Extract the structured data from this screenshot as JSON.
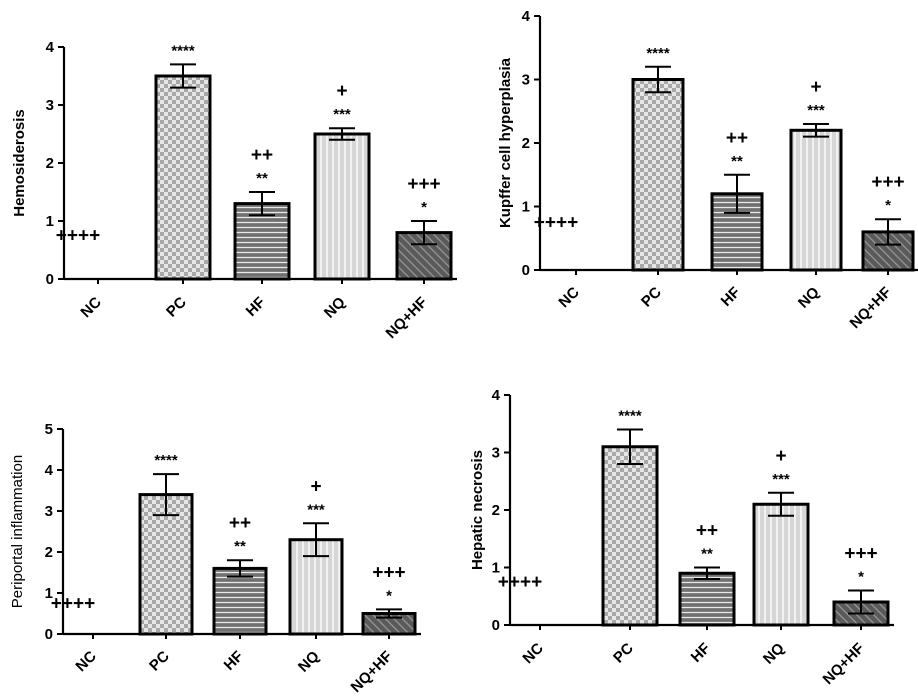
{
  "colors": {
    "axis": "#000000",
    "pc_fill": "checker-gray",
    "hf_fill": "#6e6e6e",
    "nq_fill": "#d9d9d9",
    "nqhf_fill": "#5f5f5f"
  },
  "chart_data": [
    {
      "type": "bar",
      "ylabel": "Hemosiderosis",
      "ylim": [
        0,
        4
      ],
      "yticks": [
        "0",
        "1",
        "2",
        "3",
        "4"
      ],
      "categories": [
        "NC",
        "PC",
        "HF",
        "NQ",
        "NQ+HF"
      ],
      "values": [
        0,
        3.5,
        1.3,
        2.5,
        0.8
      ],
      "errors": [
        0,
        0.2,
        0.2,
        0.1,
        0.2
      ],
      "star_labels": [
        "",
        "****",
        "**",
        "***",
        "*"
      ],
      "plus_labels": [
        "++++",
        "",
        "++",
        "+",
        "+++"
      ]
    },
    {
      "type": "bar",
      "ylabel": "Kupffer cell hyperplasia",
      "ylim": [
        0,
        4
      ],
      "yticks": [
        "0",
        "1",
        "2",
        "3",
        "4"
      ],
      "categories": [
        "NC",
        "PC",
        "HF",
        "NQ",
        "NQ+HF"
      ],
      "values": [
        0,
        3.0,
        1.2,
        2.2,
        0.6
      ],
      "errors": [
        0,
        0.2,
        0.3,
        0.1,
        0.2
      ],
      "star_labels": [
        "",
        "****",
        "**",
        "***",
        "*"
      ],
      "plus_labels": [
        "++++",
        "",
        "++",
        "+",
        "+++"
      ]
    },
    {
      "type": "bar",
      "ylabel": "Periportal inflammation",
      "ylim": [
        0,
        5
      ],
      "yticks": [
        "0",
        "1",
        "2",
        "3",
        "4",
        "5"
      ],
      "categories": [
        "NC",
        "PC",
        "HF",
        "NQ",
        "NQ+HF"
      ],
      "values": [
        0,
        3.4,
        1.6,
        2.3,
        0.5
      ],
      "errors": [
        0,
        0.5,
        0.2,
        0.4,
        0.1
      ],
      "star_labels": [
        "",
        "****",
        "**",
        "***",
        "*"
      ],
      "plus_labels": [
        "++++",
        "",
        "++",
        "+",
        "+++"
      ]
    },
    {
      "type": "bar",
      "ylabel": "Hepatic necrosis",
      "ylim": [
        0,
        4
      ],
      "yticks": [
        "0",
        "1",
        "2",
        "3",
        "4"
      ],
      "categories": [
        "NC",
        "PC",
        "HF",
        "NQ",
        "NQ+HF"
      ],
      "values": [
        0,
        3.1,
        0.9,
        2.1,
        0.4
      ],
      "errors": [
        0,
        0.3,
        0.1,
        0.2,
        0.2
      ],
      "star_labels": [
        "",
        "****",
        "**",
        "***",
        "*"
      ],
      "plus_labels": [
        "++++",
        "",
        "++",
        "+",
        "+++"
      ]
    }
  ]
}
